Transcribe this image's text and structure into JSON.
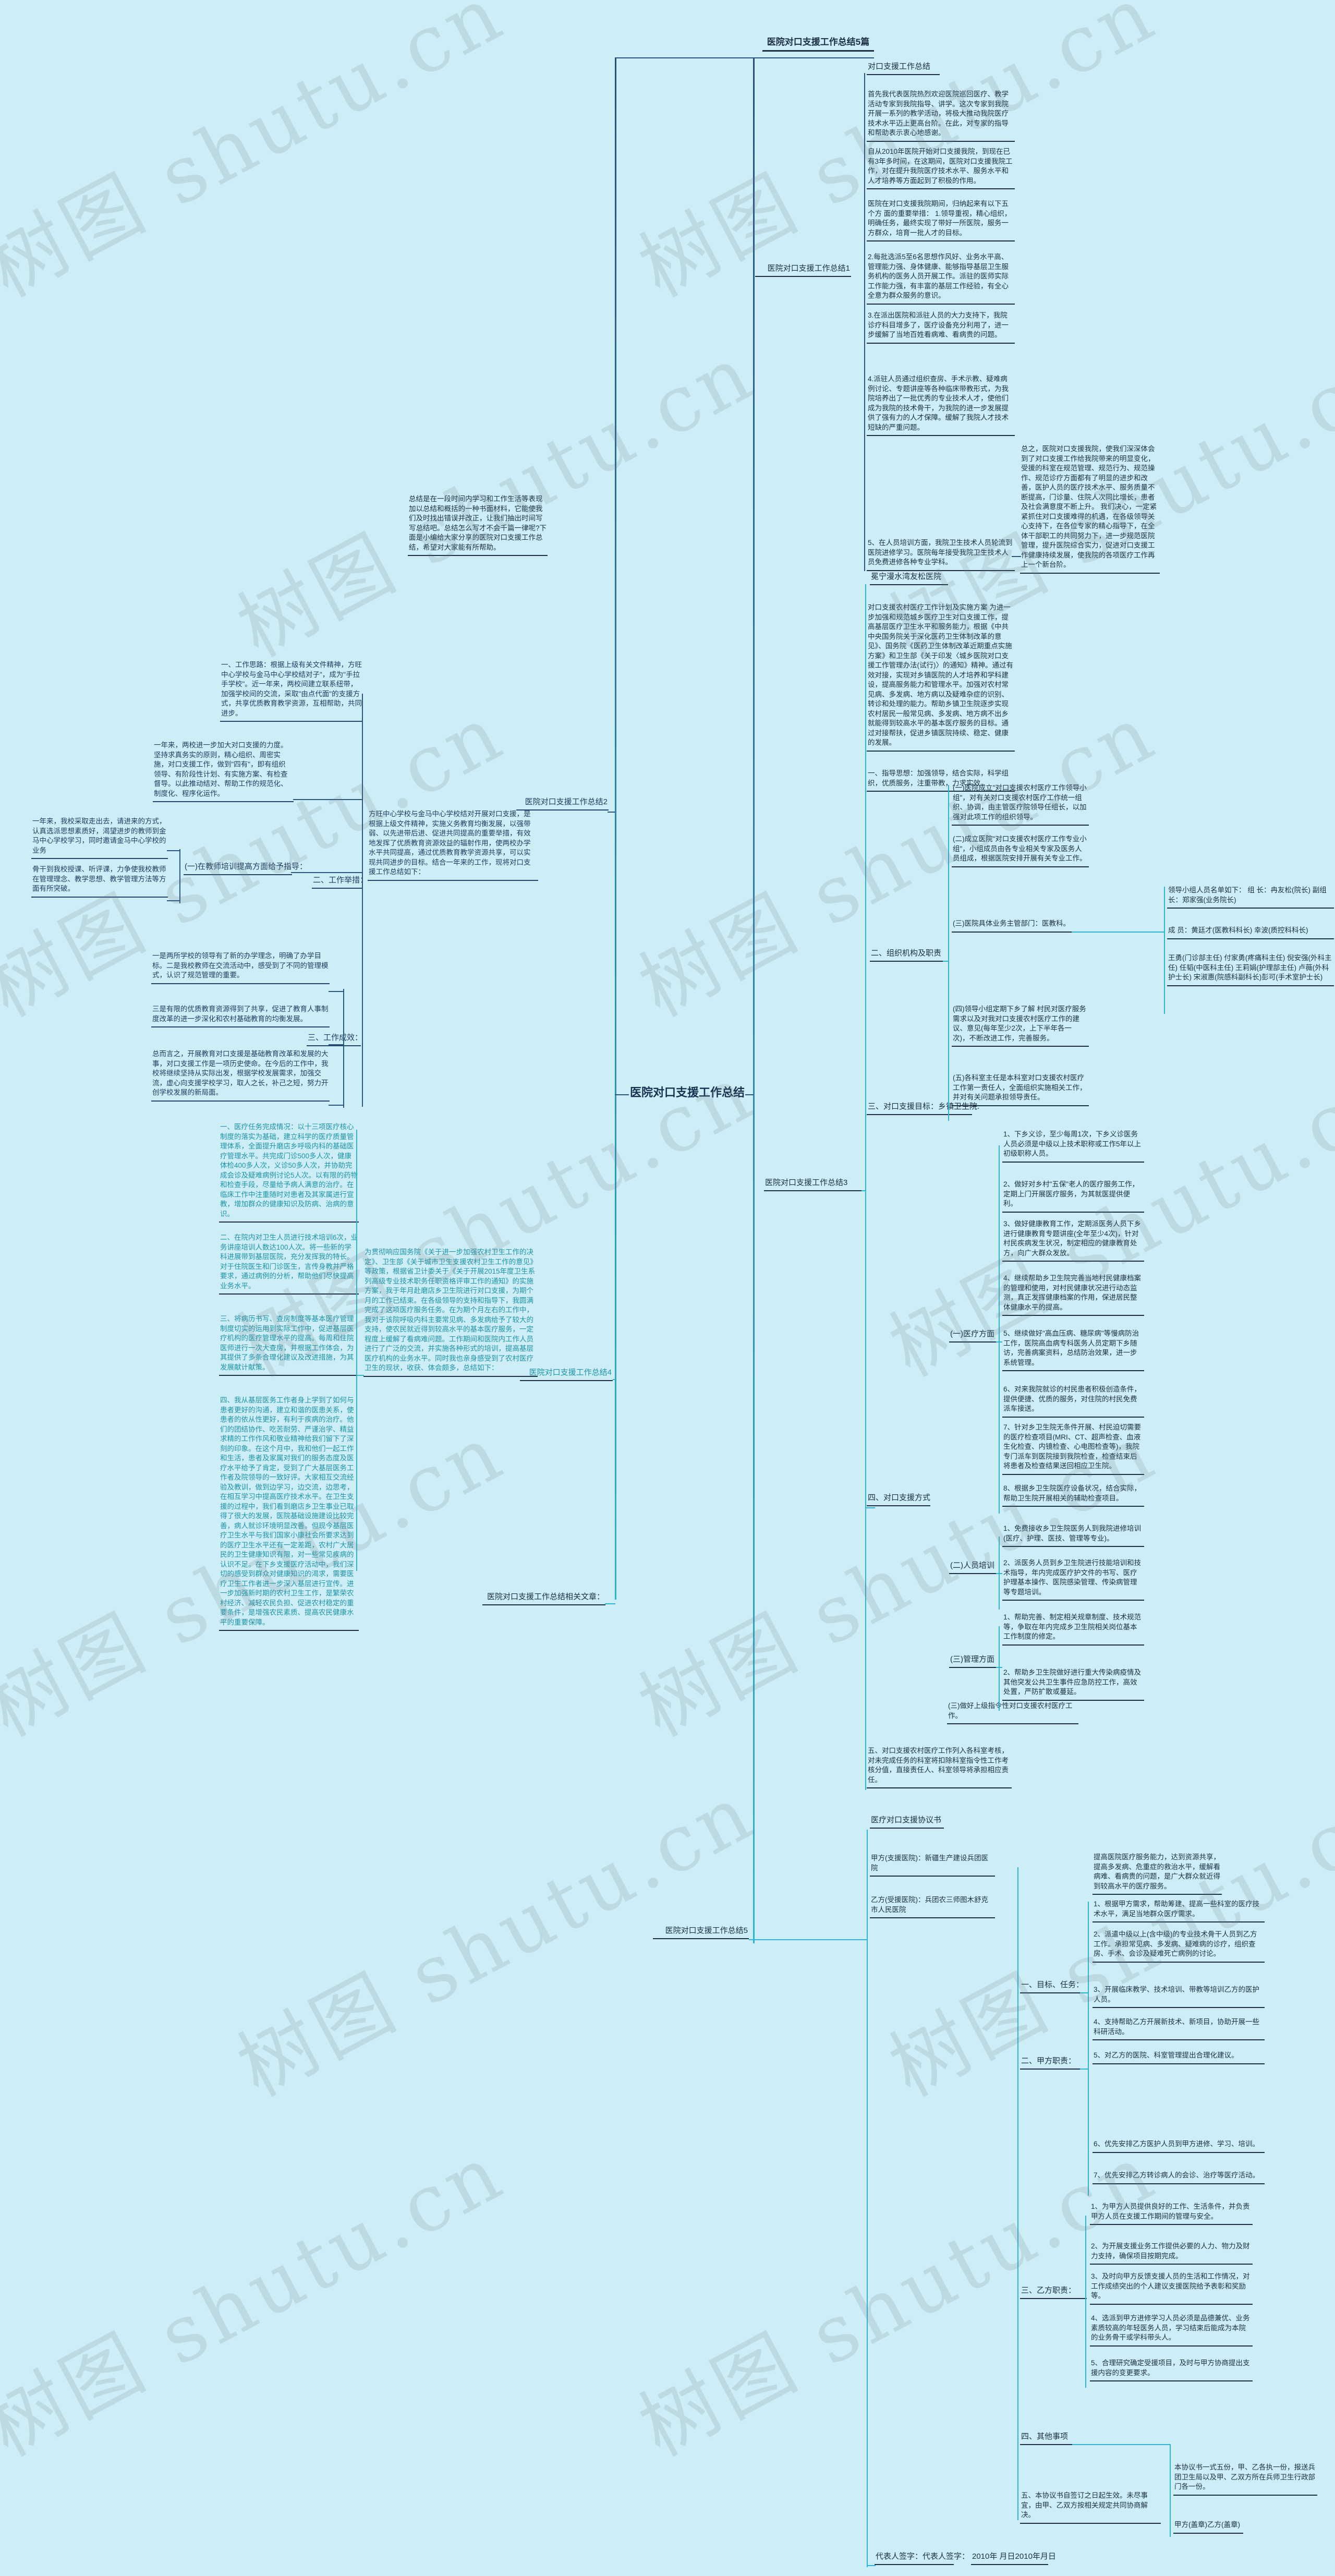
{
  "meta": {
    "background": "#cdeef6",
    "ink_color": "#1c2e45",
    "navy_text_color": "#1e3a5f",
    "teal_text_color": "#1e93a7",
    "edge_navy": "#28567f",
    "edge_teal": "#2fb3d3"
  },
  "watermark": {
    "text": "树图 shutu.cn"
  },
  "nodes": {
    "root": {
      "label": "医院对口支援工作总结"
    },
    "title": {
      "label": "医院对口支援工作总结5篇"
    },
    "intro": {
      "label": "总结是在一段时间内学习和工作生活等表现加以总结和概括的一种书面材料，它能使我们及时找出错误并改正，让我们抽出时间写写总结吧。总结怎么写才不会千篇一律呢?下面是小编给大家分享的医院对口支援工作总结，希望对大家能有所帮助。"
    },
    "b1": {
      "label": "医院对口支援工作总结1"
    },
    "b1h": {
      "label": "对口支援工作总结"
    },
    "b1p1": {
      "label": "首先我代表医院热烈欢迎医院巡回医疗、教学活动专家到我院指导、讲学。这次专家到我院开展一系列的教学活动，将极大推动我院医疗技术水平迈上更高台阶。在此，对专家的指导和帮助表示衷心地感谢。"
    },
    "b1p2": {
      "label": "自从2010年医院开始对口支援我院，到现在已有3年多时间，在这期间，医院对口支援我院工作，对在提升我院医疗技术水平、服务水平和人才培养等方面起到了积极的作用。"
    },
    "b1p3": {
      "label": "医院在对口支援我院期间，归纳起来有以下五个方 面的重要举措： 1.领导重视，精心组织，明确任务，最终实现了带好一所医院，服务一方群众，培育一批人才的目标。"
    },
    "b1p4": {
      "label": "2.每批选派5至6名思想作风好、业务水平高、管理能力强、身体健康、能够指导基层卫生服务机构的医务人员开展工作。派驻的医师实际工作能力强，有丰富的基层工作经验，有全心全意为群众服务的意识。"
    },
    "b1p5": {
      "label": "3.在派出医院和派驻人员的大力支持下，我院诊疗科目增多了，医疗设备充分利用了，进一步缓解了当地百姓看病难、看病贵的问题。"
    },
    "b1p6": {
      "label": "4.派驻人员通过组织查房、手术示教、疑难病例讨论、专题讲座等各种临床带教形式，为我院培养出了一批优秀的专业技术人才，使他们成为我院的技术骨干，为我院的进一步发展提供了强有力的人才保障。缓解了我院人才技术短缺的严重问题。"
    },
    "b1p7": {
      "label": "5、在人员培训方面，我院卫生技术人员轮流到医院进修学习。医院每年接受我院卫生技术人员免费进修各种专业学科。"
    },
    "b1sum": {
      "label": "总之，医院对口支援我院，使我们深深体会到了对口支援工作给我院带来的明显变化，受援的科室在规范管理、规范行为、规范操作、规范诊疗方面都有了明显的进步和改善，医护人员的医疗技术水平、服务质量不断提高，门诊量、住院人次同比增长，患者及社会满意度不断上升。 我们决心，一定紧紧抓住对口支援难得的机遇，在各级领导关心支持下，在各位专家的精心指导下，在全体干部职工的共同努力下，进一步规范医院管理，提升医院综合实力，促进对口支援工作健康持续发展，使我院的各项医疗工作再上一个新台阶。"
    },
    "b2": {
      "label": "医院对口支援工作总结2"
    },
    "b2intro": {
      "label": "方旺中心学校与金马中心学校结对开展对口支援，是根据上级文件精神，实施义务教育均衡发展，以强带弱、以先进带后进、促进共同提高的重要举措，有效地发挥了优质教育资源效益的辐射作用，使两校办学水平共同提高，通过优质教育教学资源共享，可以实现共同进步的目标。结合一年来的工作，现将对口支援工作总结如下："
    },
    "b2c1": {
      "label": "一、工作思路：根据上级有关文件精神，方旺中心学校与金马中心学校结对子\"，成为\"手拉手学校\"。近一年来，两校间建立联系纽带，加强学校间的交流，采取\"由点代面\"的支援方式，共享优质教育教学资源，互相帮助，共同进步。"
    },
    "b2c2": {
      "label": "一年来，两校进一步加大对口支援的力度。坚持求真务实的原则，精心组织、周密实施，对口支援工作，做到\"四有\"，即有组织领导、有阶段性计划、有实施方案、有检查督导。以此推动结对、帮助工作的规范化、制度化、程序化运作。"
    },
    "b2c3": {
      "label": "二、工作举措："
    },
    "b2c3a": {
      "label": "(一)在教师培训提高方面给予指导："
    },
    "b2c3a1": {
      "label": "一年来，我校采取走出去，请进来的方式，认真选派思想素质好，渴望进步的教师到金马中心学校学习，同时邀请金马中心学校的业务"
    },
    "b2c3a2": {
      "label": "骨干到我校授课、听评课，力争使我校教师在管理理念、教学思想、教学管理方法等方面有所突破。"
    },
    "b2c4": {
      "label": "三、工作成效："
    },
    "b2c4a": {
      "label": "一是两所学校的领导有了新的办学理念，明确了办学目标。二是我校教师在交流活动中，感受到了不同的管理模式，认识了规范管理的重要。"
    },
    "b2c4b": {
      "label": "三是有限的优质教育资源得到了共享，促进了教育人事制度改革的进一步深化和农村基础教育的均衡发展。"
    },
    "b2c4c": {
      "label": "总而言之，开展教育对口支援是基础教育改革和发展的大事，对口支援工作是一项历史使命。在今后的工作中，我校将继续坚持从实际出发，根据学校发展需求，加强交流，虚心向支援学校学习，取人之长，补己之短，努力开创学校发展的新局面。"
    },
    "b3": {
      "label": "医院对口支援工作总结3"
    },
    "b3h": {
      "label": "冕宁漫水湾友松医院"
    },
    "b3p0": {
      "label": "对口支援农村医疗工作计划及实施方案 为进一步加强和规范城乡医疗卫生对口支援工作，提高基层医疗卫生水平和服务能力，根据《中共中央国务院关于深化医药卫生体制改革的意见》、国务院《医药卫生体制改革近期重点实施方案》和卫生部《关于印发〈城乡医院对口支援工作管理办法(试行)〉的通知》精神。通过有效对接，实现对乡镇医院的人才培养和学科建设，提高服务能力和管理水平。加强对农村常见病、多发病、地方病以及疑难杂症的识别、转诊和处理的能力。帮助乡镇卫生院逐步实现农村居民一般常见病、多发病、地方病不出乡就能得到较高水平的基本医疗服务的目标。通过对接帮扶，促进乡镇医院持续、稳定、健康的发展。"
    },
    "b3p1": {
      "label": "一、指导思想：加强领导，结合实际，科学组织，优质服务，注重带教，力求实效。"
    },
    "b3s2": {
      "label": "二、组织机构及职责"
    },
    "b3s2a1": {
      "label": "(一)医院成立\"对口支援农村医疗工作领导小组\"，对有关对口支援农村医疗工作统一组织、协调，由主管医疗院领导任组长，以加强对此项工作的组织领导。"
    },
    "b3s2a2": {
      "label": "(二)成立医院\"对口支援农村医疗工作专业小组\"，小组成员由各专业相关专家及医务人员组成，根据医院安排开展有关专业工作。"
    },
    "b3s2a3": {
      "label": "(三)医院具体业务主管部门：医教科。"
    },
    "b3n1": {
      "label": "领导小组人员名单如下： 组 长：冉友松(院长) 副组长：郑家强(业务院长)"
    },
    "b3n2": {
      "label": "成 员：黄廷才(医教科科长) 幸波(质控科科长)"
    },
    "b3n3": {
      "label": "王勇(门诊部主任) 付家勇(疼痛科主任) 倪安强(外科主任) 任韬(中医科主任) 王莉娟(护理部主任) 卢薇(外科护士长) 宋淑惠(院感科副科长)彭可(手术室护士长)"
    },
    "b3s2a4": {
      "label": "(四)领导小组定期下乡了解 村民对医疗服务需求以及对我对口支援农村医疗工作的建议、意见(每年至少2次，上下半年各一次)，不断改进工作，完善服务。"
    },
    "b3s2a5": {
      "label": "(五)各科室主任是本科室对口支援农村医疗工作第一责任人，全面组织实施相关工作，并对有关问题承担领导责任。"
    },
    "b3p3": {
      "label": "三、对口支援目标：乡镇卫生院."
    },
    "b3s4": {
      "label": "四、对口支援方式"
    },
    "b3s4a": {
      "label": "(一)医疗方面"
    },
    "b3m1": {
      "label": "1、下乡义诊，至少每周1次，下乡义诊医务人员必须是中级以上技术职称或工作5年以上初级职称人员。"
    },
    "b3m2": {
      "label": "2、做好对乡村\"五保\"老人的医疗服务工作，定期上门开展医疗服务，为其就医提供便利。"
    },
    "b3m3": {
      "label": "3、做好健康教育工作，定期派医务人员下乡进行健康教育专题讲座(全年至少4次)，针对村民疾病发生状况，制定相应的健康教育处方，向广大群众发放。"
    },
    "b3m4": {
      "label": "4、继续帮助乡卫生院完善当地村民健康档案的管理和使用，对村民健康状况进行动态监测，真正发挥健康档案的作用，保进居民整体健康水平的提高。"
    },
    "b3m5": {
      "label": "5、继续做好\"高血压病、糖尿病\"等慢病防治工作，医院高血病专科医务人员定期下乡随访，完善病案资料，总结防治效果，进一步系统管理。"
    },
    "b3m6": {
      "label": "6、对来我院就诊的村民患者积极创造条件，提供便捷、优质的服务，对住院的村民免费派车接送。"
    },
    "b3m7": {
      "label": "7、针对乡卫生院无条件开展、村民迫切需要的医疗检查项目(MRI、CT、超声检查、血液生化检查、内镜检查、心电图检查等)，我院专门派车到医院接到我院检查，检查结束后将患者及检查结果送回相应卫生院。"
    },
    "b3m8": {
      "label": "8、根据乡卫生院医疗设备状况，结合实际，帮助卫生院开展相关的辅助检查项目。"
    },
    "b3s4b": {
      "label": "(二)人员培训"
    },
    "b3t1": {
      "label": "1、免费接收乡卫生院医务人到我院进修培训(医疗、护理、医技、管理等专业)。"
    },
    "b3t2": {
      "label": "2、派医务人员到乡卫生院进行技能培训和技术指导，年内完成医疗护文件的书写、医疗护理基本操作、医院感染管理、传染病管理等专题培训。"
    },
    "b3s4c": {
      "label": "(三)管理方面"
    },
    "b3g1": {
      "label": "1、帮助完善、制定相关规章制度、技术规范等，争取在年内完成乡卫生院相关岗位基本工作制度的修定。"
    },
    "b3g2": {
      "label": "2、帮助乡卫生院做好进行重大传染病疫情及其他突发公共卫生事件应急防控工作，高效处置，严防扩散或蔓延。"
    },
    "b3s4d": {
      "label": "(三)做好上级指令性对口支援农村医疗工作。"
    },
    "b3p5": {
      "label": "五、对口支援农村医疗工作列入各科室考核，对未完成任务的科室将扣除科室指令性工作考核分值，直接责任人、科室领导将承担相应责任。"
    },
    "b4": {
      "label": "医院对口支援工作总结4"
    },
    "b4intro": {
      "label": "为贯彻响应国务院《关于进一步加强农村卫生工作的决定》、卫生部《关于城市卫生支援农村卫生工作的意见》等政策，根据省卫计委关于《关于开展2015年度卫生系列高级专业技术职务任职资格评审工作的通知》的实施方案，我于年月赴磨店乡卫生院进行对口支援，为期个月的工作已结束。在各级领导的支持和指导下，我圆满完成了这项医疗服务任务。在为期个月左右的工作中，我对于该院呼吸内科主要常见病、多发病给予了较大的支持，使农民就近得到较高水平的基本医疗服务，一定程度上缓解了看病难问题。工作期间和医院内工作人员进行了广泛的交流，并实施各种形式的培训，提高基层医疗机构的业务水平。同时我也亲身感受到了农村医疗卫生的现状，收获、体会颇多，总结如下："
    },
    "b4i1": {
      "label": "一、医疗任务完成情况：以十三项医疗核心制度的落实为基础，建立科学的医疗质量管理体系，全面提升磨店乡呼吸内科的基础医疗管理水平。共完成门诊500多人次，健康体检400多人次，义诊50多人次，并协助完成会诊及疑难病例讨论5人次。以有限的药物和检查手段，尽量给予病人满意的治疗。在临床工作中注重随时对患者及其家属进行宣教，增加群众的健康知识及防病、治病的意识。"
    },
    "b4i2": {
      "label": "二、在院内对卫生人员进行技术培训6次，业务讲座培训人数达100人次。将一些新的学科进展带到基层医院，充分发挥我的特长。对于住院医生和门诊医生，言传身教并严格要求，通过病例的分析，帮助他们尽快提高业务水平。"
    },
    "b4i3": {
      "label": "三、将病历书写、查房制度等基本医疗管理制度切实的运用到实际工作中，促进基层医疗机构的医疗管理水平的提高。每周和住院医师进行一次大查房，并根据工作体会，为其提供了多条合理化建议及改进措施，为其发展献计献策。"
    },
    "b4i4": {
      "label": "四、我从基层医务工作者身上学到了如何与患者更好的沟通，建立和谐的医患关系，使患者的依从性更好，有利于疾病的治疗。他们的团结协作、吃苦耐劳、严谨治学、精益求精的工作作风和敬业精神给我们留下了深刻的印象。在这个月中，我和他们一起工作和生活，患者及家属对我们的服务态度及医疗水平给予了肯定，受到了广大基层医务工作者及院领导的一致好评。大家相互交流经验及教训，做到边学习，边交流，边思考，在相互学习中提高医疗技术水平。在卫生支援的过程中，我们看到磨店乡卫生事业已取得了很大的发展，医院基础设施建设比较完善，病人就诊环境明显改善。但现今基层医疗卫生水平与我们国家小康社会所要求达到的医疗卫生水平还有一定差距，农村广大居民的卫生健康知识有限，对一些常见疾病的认识不足。在下乡支援医疗活动中，我们深切的感受到群众对健康知识的渴求，需要医疗卫生工作者进一步深入基层进行宣传。进一步加强新时期的农村卫生工作，是繁荣农村经济、减轻农民负担、促进农村稳定的重要条件，是增强农民素质、提高农民健康水平的重要保障。"
    },
    "brel": {
      "label": "医院对口支援工作总结相关文章："
    },
    "b5": {
      "label": "医院对口支援工作总结5"
    },
    "b5h": {
      "label": "医疗对口支援协议书"
    },
    "b5jf": {
      "label": "甲方(支援医院)：新疆生产建设兵团医院"
    },
    "b5yf": {
      "label": "乙方(受援医院)：兵团农三师图木舒克市人民医院"
    },
    "b5mb": {
      "label": "一、目标、任务："
    },
    "b5mbc": {
      "label": "提高医院医疗服务能力，达到资源共享，提高多发病、危重症的救治水平，缓解看病难、看病贵的问题，是广大群众就近得到较高水平的医疗服务。"
    },
    "b5jz": {
      "label": "二、甲方职责："
    },
    "b5j1": {
      "label": "1、根据甲方需求，帮助筹建、提高一些科室的医疗技术水平，满足当地群众医疗需求。"
    },
    "b5j2": {
      "label": "2、派遣中级以上(含中级)的专业技术骨干人员到乙方工作。承担常见病、多发病、疑难病的诊疗，组织查房、手术、会诊及疑难死亡病例的讨论。"
    },
    "b5j3": {
      "label": "3、开展临床教学、技术培训、带教等培训乙方的医护人员。"
    },
    "b5j4": {
      "label": "4、支持帮助乙方开展新技术、新项目，协助开展一些科研活动。"
    },
    "b5j5": {
      "label": "5、对乙方的医院、科室管理提出合理化建议。"
    },
    "b5j6": {
      "label": "6、优先安排乙方医护人员到甲方进修、学习、培训。"
    },
    "b5j7": {
      "label": "7、优先安排乙方转诊病人的会诊、治疗等医疗活动。"
    },
    "b5yz": {
      "label": "三、乙方职责："
    },
    "b5y1": {
      "label": "1、为甲方人员提供良好的工作、生活条件，并负责甲方人员在支援工作期间的管理与安全。"
    },
    "b5y2": {
      "label": "2、为开展支援业务工作提供必要的人力、物力及财力支持，确保项目按期完成。"
    },
    "b5y3": {
      "label": "3、及时向甲方反馈支援人员的生活和工作情况，对工作成绩突出的个人建议支援医院给予表彰和奖励等。"
    },
    "b5y4": {
      "label": "4、选派到甲方进修学习人员必须是品德兼优、业务素质较高的年轻医务人员，学习结束后能成为本院的业务骨干或学科带头人。"
    },
    "b5y5": {
      "label": "5、合理研究确定受援项目，及时与甲方协商提出支援内容的变更要求。"
    },
    "b5qt": {
      "label": "四、其他事项"
    },
    "b5qt1": {
      "label": "本协议书一式五份，甲、乙各执一份，报送兵团卫生局以及甲、乙双方所在兵师卫生行政部门各一份。"
    },
    "b5qt2": {
      "label": "甲方(盖章)乙方(盖章)"
    },
    "b5wj": {
      "label": "五、本协议书自签订之日起生效。未尽事宜，由甲、乙双方按相关规定共同协商解决。"
    },
    "b5db": {
      "label": "代表人签字：代表人签字："
    },
    "b5dt": {
      "label": "2010年 月日2010年月日"
    }
  }
}
